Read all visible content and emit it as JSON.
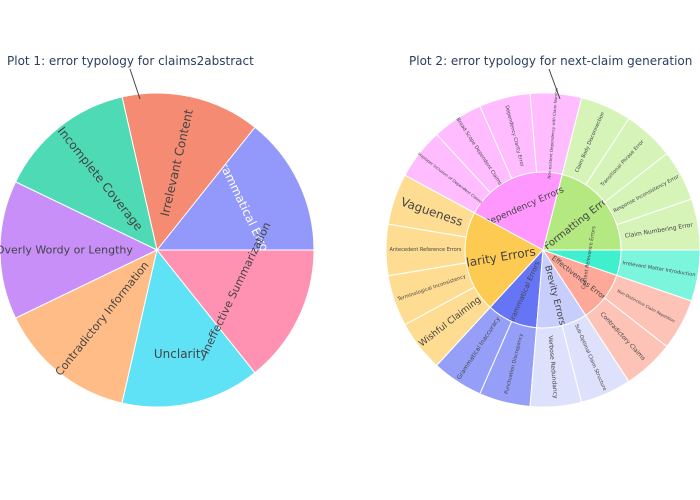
{
  "chart_data": [
    {
      "type": "pie",
      "title": "Plot 1: error typology for claims2abstract",
      "slices": [
        {
          "label": "Grammatical Errors",
          "value": 1,
          "color": "#9398fb"
        },
        {
          "label": "Irrelevant Content",
          "value": 1,
          "color": "#f48b72"
        },
        {
          "label": "Incomplete Coverage",
          "value": 1,
          "color": "#4fdab6"
        },
        {
          "label": "Overly Wordy or Lengthy",
          "value": 1,
          "color": "#c78ff7"
        },
        {
          "label": "Contradictory Information",
          "value": 1,
          "color": "#ffbc86"
        },
        {
          "label": "Unclarity",
          "value": 1,
          "color": "#5fe2f5"
        },
        {
          "label": "Ineffective Summarization",
          "value": 1,
          "color": "#ff92b3"
        }
      ]
    },
    {
      "type": "sunburst",
      "title": "Plot 2: error typology for next-claim generation",
      "categories": [
        {
          "label": "Formatting Errors",
          "color": "#b4e880",
          "light": "#d6f3b8",
          "children": [
            "Claim Numbering Error",
            "Response Inconsistency Error",
            "Transitional Phrase Error",
            "Claim Body Disconnection"
          ]
        },
        {
          "label": "Dependency Errors",
          "color": "#ff97ff",
          "light": "#ffbcff",
          "children": [
            "Non-existent Dependency with Claim Number",
            "Dependency Clarity Error",
            "Broad Scope Dependent Claims",
            "Improper Inclusion of Dependent Claims"
          ]
        },
        {
          "label": "Clarity Errors",
          "color": "#fecb52",
          "light": "#fedd92",
          "children": [
            "Vagueness",
            "Antecedent Reference Errors",
            "Terminological Inconsistency",
            "Wishful Claiming"
          ]
        },
        {
          "label": "Grammatical Errors",
          "color": "#6675f5",
          "light": "#959ff8",
          "children": [
            "Grammatical Inaccuracy",
            "Punctuation Discrepancy"
          ]
        },
        {
          "label": "Brevity Errors",
          "color": "#c8cefb",
          "light": "#dde1fc",
          "children": [
            "Verbose Redundancy",
            "Sub-Optimal Claim Structure"
          ]
        },
        {
          "label": "Effectiveness Errors",
          "color": "#fda898",
          "light": "#fdc3b7",
          "children": [
            "Contradictory Claims",
            "Non-Distinctive Claim Repetition"
          ]
        },
        {
          "label": "Content Relevance Errors",
          "color": "#3ff0cf",
          "light": "#7cf5dd",
          "children": [
            "Irrelevant Matter Introduction"
          ]
        }
      ]
    }
  ]
}
